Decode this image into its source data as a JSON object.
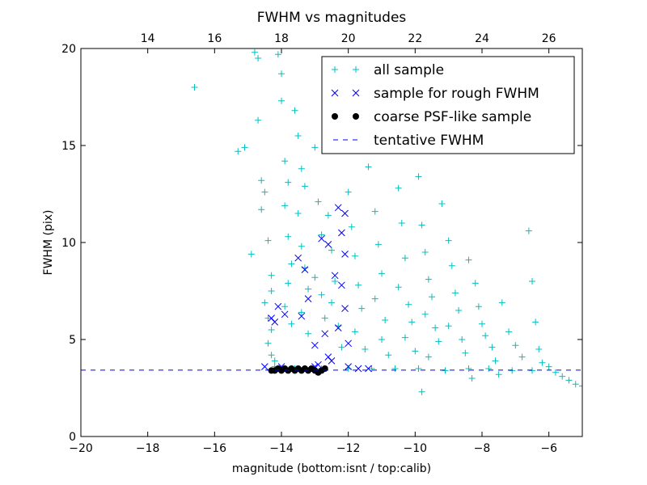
{
  "chart_data": {
    "type": "scatter",
    "title": "FWHM vs magnitudes",
    "xlabel": "magnitude (bottom:isnt / top:calib)",
    "ylabel": "FWHM (pix)",
    "xlim": [
      -20,
      -5
    ],
    "ylim": [
      0,
      20
    ],
    "x_ticks": [
      -20,
      -18,
      -16,
      -14,
      -12,
      -10,
      -8,
      -6
    ],
    "x_tick_labels": [
      "−20",
      "−18",
      "−16",
      "−14",
      "−12",
      "−10",
      "−8",
      "−6"
    ],
    "y_ticks": [
      0,
      5,
      10,
      15,
      20
    ],
    "y_tick_labels": [
      "0",
      "5",
      "10",
      "15",
      "20"
    ],
    "top_axis": {
      "ticks": [
        14,
        16,
        18,
        20,
        22,
        24,
        26
      ],
      "tick_labels": [
        "14",
        "16",
        "18",
        "20",
        "22",
        "24",
        "26"
      ],
      "offset": 32.0
    },
    "grid": false,
    "legend_position": "top-right",
    "series": [
      {
        "name": "all sample",
        "marker": "plus",
        "color": "#00bfbf",
        "points": [
          [
            -16.6,
            18.0
          ],
          [
            -15.3,
            14.7
          ],
          [
            -15.1,
            14.9
          ],
          [
            -14.9,
            9.4
          ],
          [
            -14.8,
            19.8
          ],
          [
            -14.7,
            19.5
          ],
          [
            -14.7,
            16.3
          ],
          [
            -14.6,
            13.2
          ],
          [
            -14.6,
            11.7
          ],
          [
            -14.5,
            12.6
          ],
          [
            -14.4,
            10.1
          ],
          [
            -14.3,
            8.3
          ],
          [
            -14.3,
            7.5
          ],
          [
            -14.5,
            6.9
          ],
          [
            -14.4,
            6.1
          ],
          [
            -14.3,
            5.5
          ],
          [
            -14.4,
            4.8
          ],
          [
            -14.3,
            4.2
          ],
          [
            -14.2,
            3.9
          ],
          [
            -14.1,
            19.7
          ],
          [
            -14.0,
            18.7
          ],
          [
            -14.0,
            17.3
          ],
          [
            -13.9,
            14.2
          ],
          [
            -13.8,
            13.1
          ],
          [
            -13.9,
            11.9
          ],
          [
            -13.8,
            10.3
          ],
          [
            -13.7,
            8.9
          ],
          [
            -13.8,
            7.9
          ],
          [
            -13.9,
            6.7
          ],
          [
            -13.7,
            5.8
          ],
          [
            -13.6,
            16.8
          ],
          [
            -13.5,
            15.5
          ],
          [
            -13.4,
            13.8
          ],
          [
            -13.3,
            12.9
          ],
          [
            -13.5,
            11.5
          ],
          [
            -13.4,
            9.8
          ],
          [
            -13.3,
            8.7
          ],
          [
            -13.2,
            7.6
          ],
          [
            -13.4,
            6.4
          ],
          [
            -13.2,
            5.3
          ],
          [
            -13.0,
            14.9
          ],
          [
            -12.9,
            12.1
          ],
          [
            -12.8,
            10.4
          ],
          [
            -13.0,
            8.2
          ],
          [
            -12.8,
            7.3
          ],
          [
            -12.7,
            6.1
          ],
          [
            -12.6,
            11.4
          ],
          [
            -12.5,
            9.6
          ],
          [
            -12.4,
            8.0
          ],
          [
            -12.5,
            6.9
          ],
          [
            -12.3,
            5.7
          ],
          [
            -12.2,
            4.6
          ],
          [
            -12.0,
            12.6
          ],
          [
            -11.9,
            10.8
          ],
          [
            -11.8,
            9.3
          ],
          [
            -11.7,
            7.8
          ],
          [
            -11.6,
            6.6
          ],
          [
            -11.8,
            5.4
          ],
          [
            -11.5,
            4.5
          ],
          [
            -11.4,
            13.9
          ],
          [
            -11.2,
            11.6
          ],
          [
            -11.1,
            9.9
          ],
          [
            -11.0,
            8.4
          ],
          [
            -11.2,
            7.1
          ],
          [
            -10.9,
            6.0
          ],
          [
            -11.0,
            5.0
          ],
          [
            -10.8,
            4.2
          ],
          [
            -10.6,
            15.6
          ],
          [
            -10.5,
            12.8
          ],
          [
            -10.4,
            11.0
          ],
          [
            -10.3,
            9.2
          ],
          [
            -10.5,
            7.7
          ],
          [
            -10.2,
            6.8
          ],
          [
            -10.1,
            5.9
          ],
          [
            -10.3,
            5.1
          ],
          [
            -10.0,
            4.4
          ],
          [
            -9.9,
            13.4
          ],
          [
            -9.8,
            10.9
          ],
          [
            -9.7,
            9.5
          ],
          [
            -9.6,
            8.1
          ],
          [
            -9.5,
            7.2
          ],
          [
            -9.7,
            6.3
          ],
          [
            -9.4,
            5.6
          ],
          [
            -9.3,
            4.9
          ],
          [
            -9.6,
            4.1
          ],
          [
            -9.2,
            12.0
          ],
          [
            -9.0,
            10.1
          ],
          [
            -8.9,
            8.8
          ],
          [
            -8.8,
            7.4
          ],
          [
            -8.7,
            6.5
          ],
          [
            -9.0,
            5.7
          ],
          [
            -8.6,
            5.0
          ],
          [
            -8.5,
            4.3
          ],
          [
            -8.4,
            9.1
          ],
          [
            -8.2,
            7.9
          ],
          [
            -8.1,
            6.7
          ],
          [
            -8.0,
            5.8
          ],
          [
            -7.9,
            5.2
          ],
          [
            -7.7,
            4.6
          ],
          [
            -7.6,
            3.9
          ],
          [
            -7.4,
            6.9
          ],
          [
            -7.2,
            5.4
          ],
          [
            -7.0,
            4.7
          ],
          [
            -6.8,
            4.1
          ],
          [
            -6.6,
            10.6
          ],
          [
            -6.5,
            8.0
          ],
          [
            -6.4,
            5.9
          ],
          [
            -6.3,
            4.5
          ],
          [
            -6.2,
            3.8
          ],
          [
            -6.0,
            3.6
          ],
          [
            -5.8,
            3.3
          ],
          [
            -5.6,
            3.1
          ],
          [
            -5.4,
            2.9
          ],
          [
            -5.2,
            2.7
          ],
          [
            -5.0,
            2.6
          ],
          [
            -9.8,
            2.3
          ],
          [
            -8.3,
            3.0
          ],
          [
            -7.5,
            3.2
          ],
          [
            -14.2,
            3.6
          ],
          [
            -13.6,
            3.5
          ],
          [
            -12.8,
            3.5
          ],
          [
            -12.0,
            3.5
          ],
          [
            -11.3,
            3.5
          ],
          [
            -10.6,
            3.5
          ],
          [
            -9.9,
            3.5
          ],
          [
            -9.1,
            3.4
          ],
          [
            -8.4,
            3.5
          ],
          [
            -7.8,
            3.5
          ],
          [
            -7.1,
            3.4
          ],
          [
            -6.5,
            3.4
          ]
        ]
      },
      {
        "name": "sample for rough FWHM",
        "marker": "x",
        "color": "#0000ff",
        "points": [
          [
            -14.3,
            6.1
          ],
          [
            -14.2,
            5.9
          ],
          [
            -14.1,
            6.7
          ],
          [
            -13.9,
            6.3
          ],
          [
            -13.5,
            9.2
          ],
          [
            -13.3,
            8.6
          ],
          [
            -13.2,
            7.1
          ],
          [
            -13.4,
            6.2
          ],
          [
            -13.0,
            4.7
          ],
          [
            -12.8,
            10.2
          ],
          [
            -12.7,
            5.3
          ],
          [
            -12.6,
            4.1
          ],
          [
            -12.5,
            3.9
          ],
          [
            -12.3,
            11.8
          ],
          [
            -12.2,
            10.5
          ],
          [
            -12.1,
            9.4
          ],
          [
            -12.4,
            8.3
          ],
          [
            -12.2,
            7.8
          ],
          [
            -12.1,
            6.6
          ],
          [
            -12.3,
            5.6
          ],
          [
            -12.0,
            4.8
          ],
          [
            -12.1,
            11.5
          ],
          [
            -12.6,
            9.9
          ],
          [
            -12.9,
            3.7
          ],
          [
            -14.5,
            3.6
          ],
          [
            -14.0,
            3.6
          ],
          [
            -13.0,
            3.6
          ],
          [
            -12.0,
            3.6
          ],
          [
            -11.7,
            3.5
          ],
          [
            -11.4,
            3.5
          ]
        ]
      },
      {
        "name": "coarse PSF-like sample",
        "marker": "dot",
        "color": "#000000",
        "points": [
          [
            -14.3,
            3.4
          ],
          [
            -14.2,
            3.4
          ],
          [
            -14.1,
            3.5
          ],
          [
            -14.0,
            3.4
          ],
          [
            -13.9,
            3.5
          ],
          [
            -13.8,
            3.4
          ],
          [
            -13.7,
            3.5
          ],
          [
            -13.6,
            3.4
          ],
          [
            -13.5,
            3.5
          ],
          [
            -13.4,
            3.4
          ],
          [
            -13.3,
            3.5
          ],
          [
            -13.2,
            3.4
          ],
          [
            -13.1,
            3.5
          ],
          [
            -13.0,
            3.4
          ],
          [
            -12.9,
            3.3
          ],
          [
            -12.8,
            3.4
          ],
          [
            -12.7,
            3.5
          ]
        ]
      },
      {
        "name": "tentative FWHM",
        "type": "hline",
        "style": "dashed",
        "color": "#0000ff",
        "y": 3.42,
        "x_range": [
          -20,
          -5
        ]
      }
    ]
  }
}
